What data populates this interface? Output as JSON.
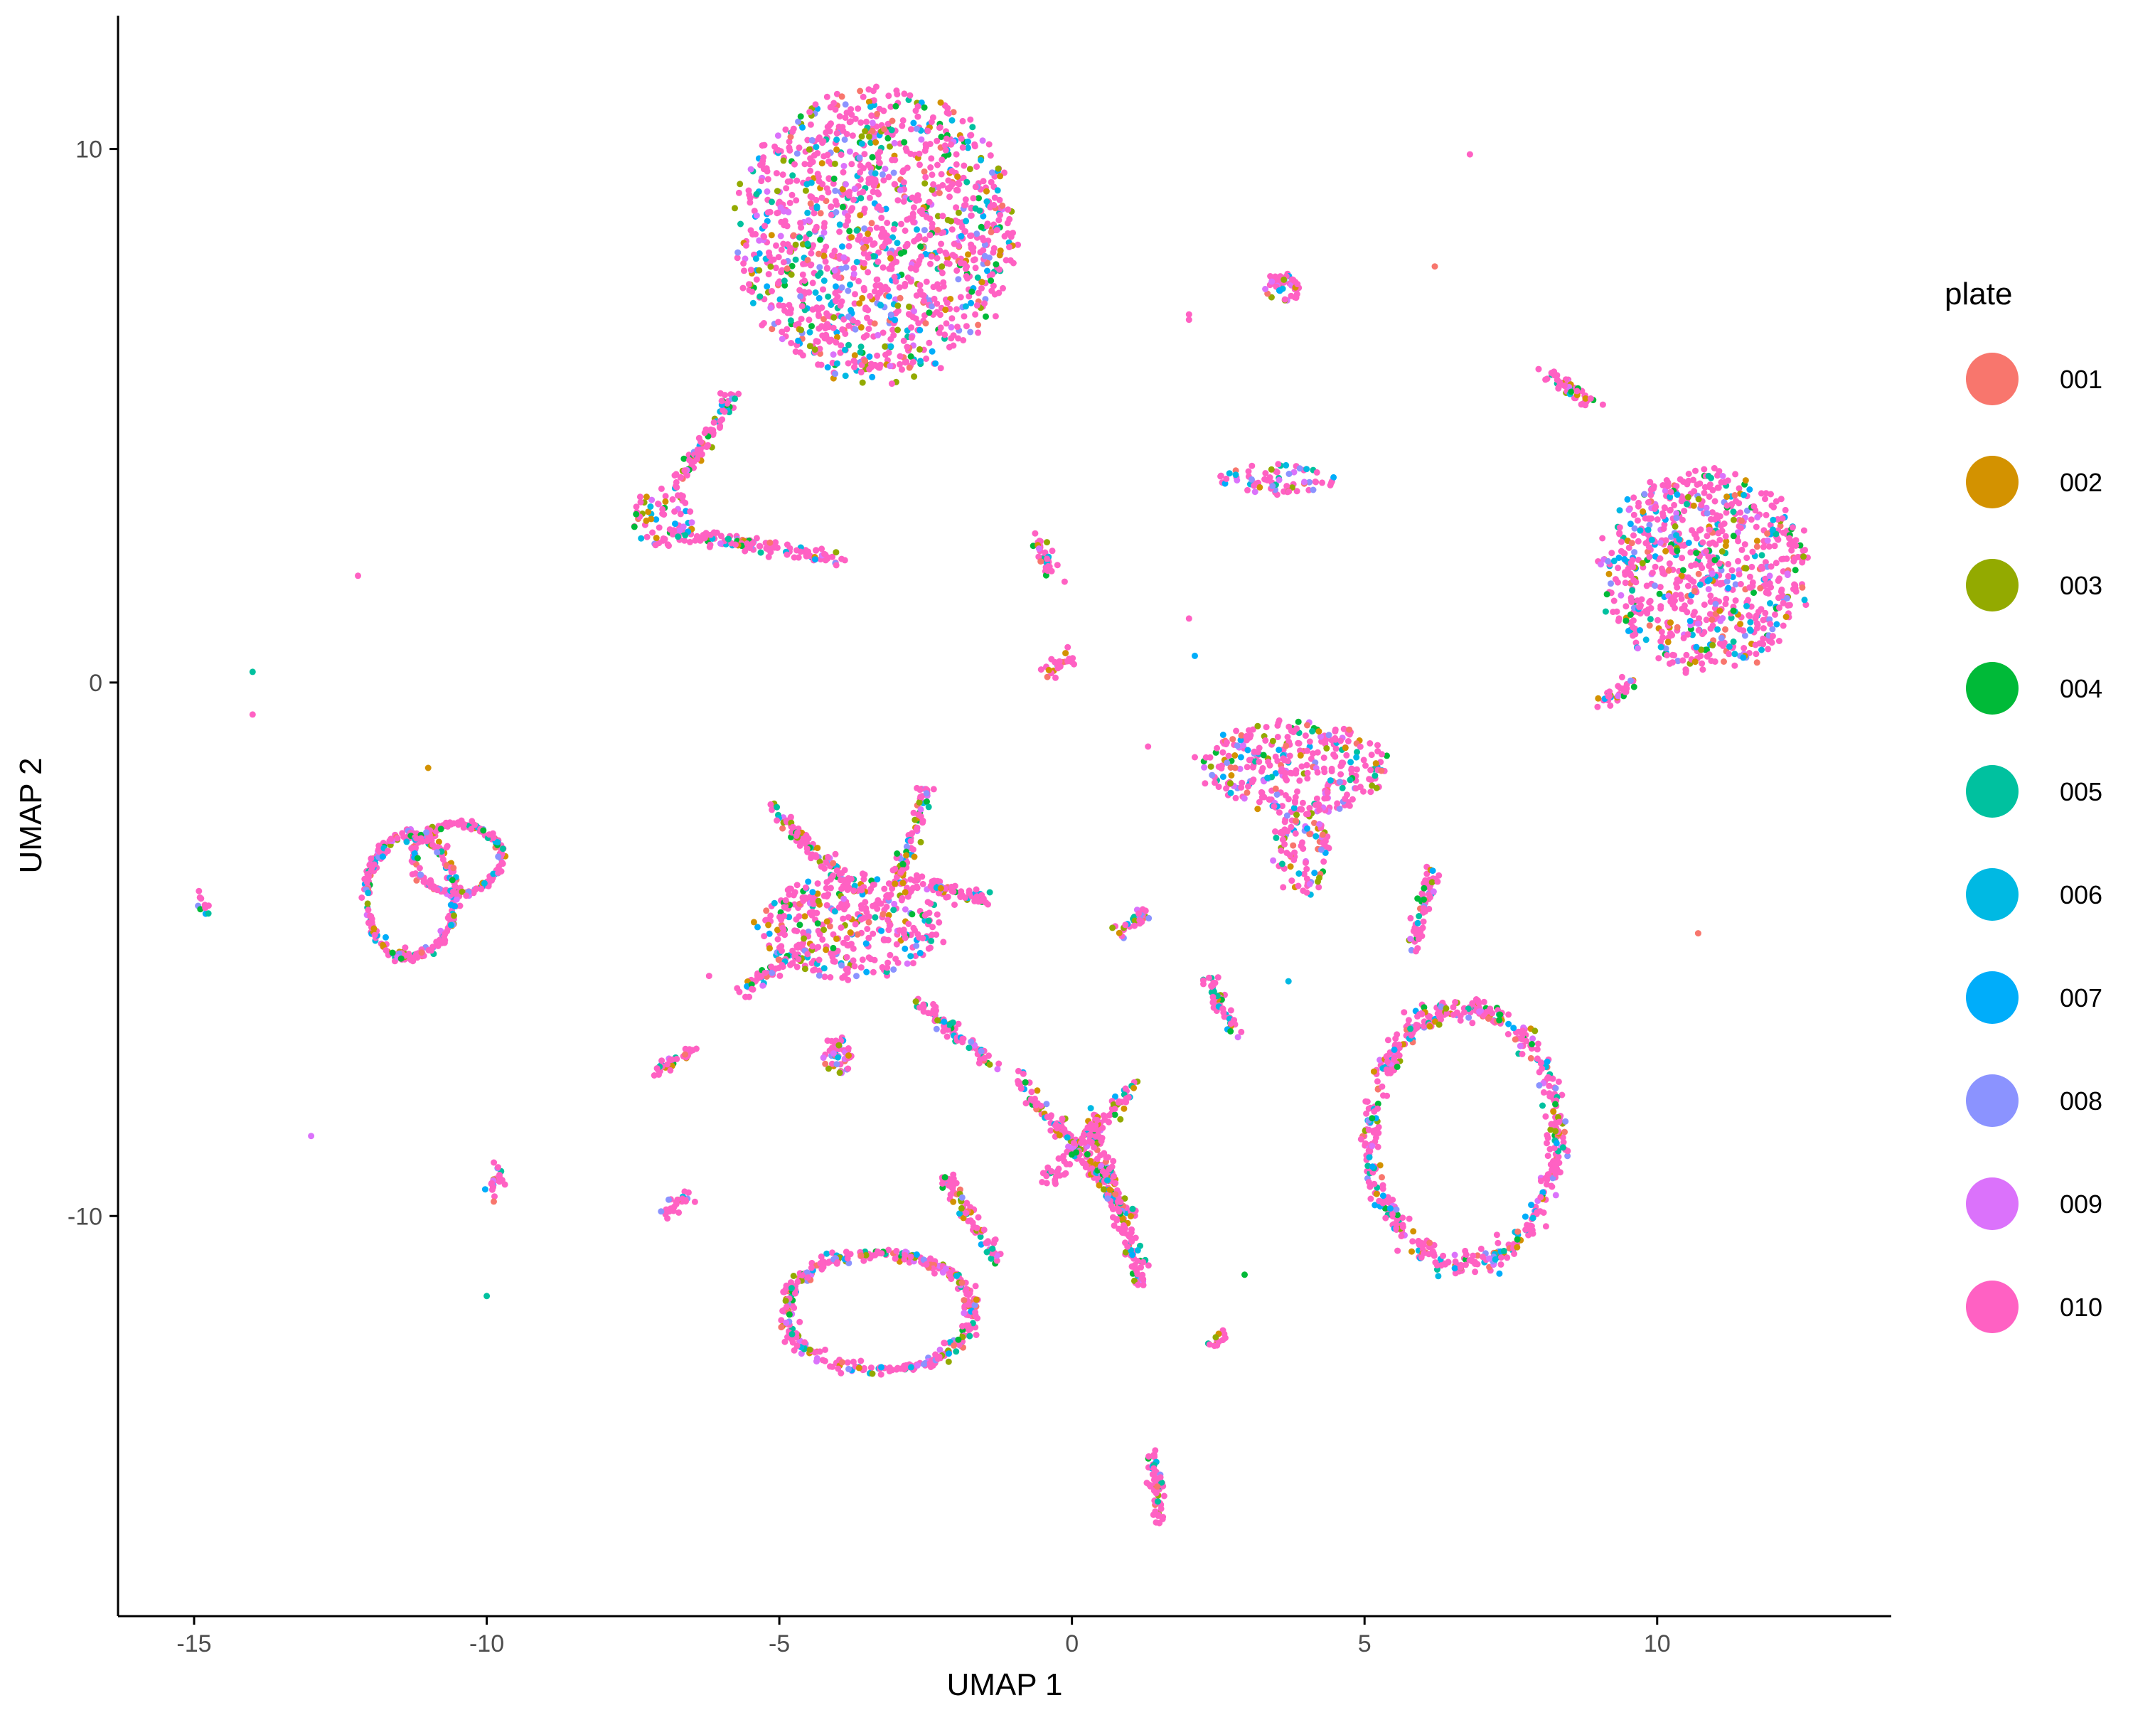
{
  "chart_data": {
    "type": "scatter",
    "title": "",
    "xlabel": "UMAP 1",
    "ylabel": "UMAP 2",
    "xlim": [
      -16.3,
      14
    ],
    "ylim": [
      -17.5,
      12.5
    ],
    "x_ticks": [
      -15,
      -10,
      -5,
      0,
      5,
      10
    ],
    "y_ticks": [
      -10,
      0,
      10
    ],
    "grid": false,
    "legend_position": "right",
    "legend": {
      "title": "plate",
      "entries": [
        {
          "label": "001",
          "color": "#F8766D"
        },
        {
          "label": "002",
          "color": "#D39200"
        },
        {
          "label": "003",
          "color": "#93AA00"
        },
        {
          "label": "004",
          "color": "#00BA38"
        },
        {
          "label": "005",
          "color": "#00C19F"
        },
        {
          "label": "006",
          "color": "#00B9E3"
        },
        {
          "label": "007",
          "color": "#00ADFA"
        },
        {
          "label": "008",
          "color": "#8B93FF"
        },
        {
          "label": "009",
          "color": "#DB72FB"
        },
        {
          "label": "010",
          "color": "#FF61C3"
        }
      ]
    },
    "clusters": [
      {
        "shape": "blob",
        "center": [
          -3.35,
          8.4
        ],
        "radius": [
          2.4,
          2.8
        ]
      },
      {
        "shape": "blob",
        "center": [
          -7.0,
          3.1
        ],
        "radius": [
          0.5,
          0.6
        ]
      },
      {
        "shape": "line",
        "from": [
          -6.8,
          3.6
        ],
        "to": [
          -5.8,
          5.4
        ]
      },
      {
        "shape": "line",
        "from": [
          -6.7,
          2.8
        ],
        "to": [
          -3.9,
          2.3
        ]
      },
      {
        "shape": "blob",
        "center": [
          3.5,
          3.8
        ],
        "radius": [
          1.0,
          0.3
        ]
      },
      {
        "shape": "blob",
        "center": [
          3.6,
          7.4
        ],
        "radius": [
          0.3,
          0.3
        ]
      },
      {
        "shape": "line",
        "from": [
          8.1,
          5.8
        ],
        "to": [
          8.9,
          5.2
        ]
      },
      {
        "shape": "blob",
        "center": [
          10.8,
          2.1
        ],
        "radius": [
          1.8,
          1.9
        ]
      },
      {
        "shape": "line",
        "from": [
          9.0,
          -0.4
        ],
        "to": [
          9.6,
          0.0
        ]
      },
      {
        "shape": "line",
        "from": [
          -0.6,
          2.7
        ],
        "to": [
          -0.3,
          2.0
        ]
      },
      {
        "shape": "line",
        "from": [
          -0.4,
          0.2
        ],
        "to": [
          0.0,
          0.5
        ]
      },
      {
        "shape": "blob",
        "center": [
          3.8,
          -1.6
        ],
        "radius": [
          1.6,
          0.9
        ]
      },
      {
        "shape": "blob",
        "center": [
          3.9,
          -3.2
        ],
        "radius": [
          0.5,
          0.8
        ]
      },
      {
        "shape": "blob",
        "center": [
          -3.8,
          -4.6
        ],
        "radius": [
          1.6,
          1.0
        ]
      },
      {
        "shape": "line",
        "from": [
          -5.2,
          -2.3
        ],
        "to": [
          -3.8,
          -3.8
        ]
      },
      {
        "shape": "line",
        "from": [
          -3.0,
          -3.8
        ],
        "to": [
          -2.5,
          -2.0
        ]
      },
      {
        "shape": "line",
        "from": [
          -2.8,
          -3.7
        ],
        "to": [
          -1.4,
          -4.1
        ]
      },
      {
        "shape": "line",
        "from": [
          -5.6,
          -5.8
        ],
        "to": [
          -4.5,
          -4.9
        ]
      },
      {
        "shape": "line",
        "from": [
          -2.6,
          -6.0
        ],
        "to": [
          -1.3,
          -7.2
        ]
      },
      {
        "shape": "blob",
        "center": [
          -4.0,
          -7.0
        ],
        "radius": [
          0.25,
          0.4
        ]
      },
      {
        "shape": "ring",
        "center": [
          -11.3,
          -4.0
        ],
        "radius": [
          0.75,
          1.15
        ]
      },
      {
        "shape": "ring",
        "center": [
          -10.5,
          -3.3
        ],
        "radius": [
          0.75,
          0.65
        ]
      },
      {
        "shape": "ring",
        "center": [
          6.7,
          -8.5
        ],
        "radius": [
          1.6,
          2.4
        ]
      },
      {
        "shape": "ring",
        "center": [
          -3.3,
          -11.8
        ],
        "radius": [
          1.6,
          1.1
        ]
      },
      {
        "shape": "line",
        "from": [
          -2.2,
          -9.2
        ],
        "to": [
          -1.3,
          -10.8
        ]
      },
      {
        "shape": "line",
        "from": [
          -0.9,
          -7.4
        ],
        "to": [
          1.0,
          -10.0
        ]
      },
      {
        "shape": "line",
        "from": [
          1.1,
          -7.5
        ],
        "to": [
          -0.4,
          -9.3
        ]
      },
      {
        "shape": "line",
        "from": [
          0.3,
          -8.2
        ],
        "to": [
          1.2,
          -11.3
        ]
      },
      {
        "shape": "line",
        "from": [
          6.2,
          -3.5
        ],
        "to": [
          5.8,
          -5.0
        ]
      },
      {
        "shape": "line",
        "from": [
          2.3,
          -5.5
        ],
        "to": [
          2.8,
          -6.6
        ]
      },
      {
        "shape": "line",
        "from": [
          0.8,
          -4.7
        ],
        "to": [
          1.3,
          -4.3
        ]
      },
      {
        "shape": "line",
        "from": [
          1.4,
          -14.4
        ],
        "to": [
          1.5,
          -15.7
        ]
      },
      {
        "shape": "line",
        "from": [
          -6.5,
          -6.9
        ],
        "to": [
          -7.1,
          -7.3
        ]
      },
      {
        "shape": "line",
        "from": [
          -6.6,
          -9.6
        ],
        "to": [
          -7.0,
          -10.0
        ]
      },
      {
        "shape": "line",
        "from": [
          -9.8,
          -9.1
        ],
        "to": [
          -9.9,
          -9.6
        ]
      },
      {
        "shape": "line",
        "from": [
          -14.9,
          -4.1
        ],
        "to": [
          -14.8,
          -4.3
        ]
      },
      {
        "shape": "line",
        "from": [
          2.4,
          -12.4
        ],
        "to": [
          2.6,
          -12.2
        ]
      }
    ],
    "outliers": [
      [
        -12.2,
        2.0
      ],
      [
        -14.0,
        0.2
      ],
      [
        -14.0,
        -0.6
      ],
      [
        -13.0,
        -8.5
      ],
      [
        -10.0,
        -11.5
      ],
      [
        -11.0,
        -1.6
      ],
      [
        6.8,
        9.9
      ],
      [
        6.2,
        7.8
      ],
      [
        2.0,
        6.9
      ],
      [
        2.0,
        1.2
      ],
      [
        2.1,
        0.5
      ],
      [
        1.3,
        -1.2
      ],
      [
        2.1,
        -1.4
      ],
      [
        3.7,
        -5.6
      ],
      [
        2.95,
        -11.1
      ],
      [
        10.7,
        -4.7
      ],
      [
        -6.2,
        -5.5
      ],
      [
        2.0,
        6.8
      ]
    ]
  }
}
